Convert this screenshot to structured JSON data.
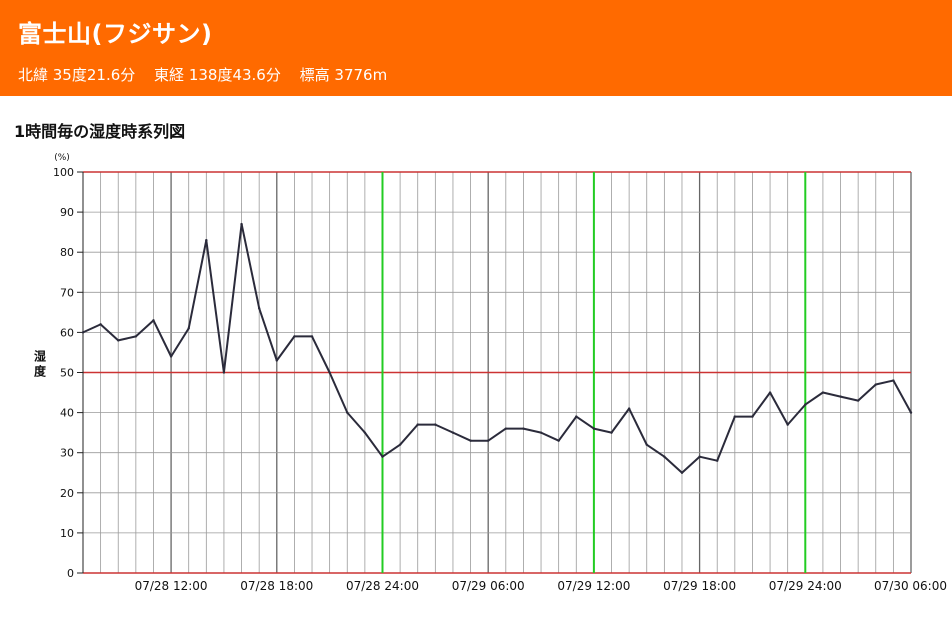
{
  "header": {
    "title": "富士山(フジサン)",
    "latitude": "北緯 35度21.6分",
    "longitude": "東経 138度43.6分",
    "elevation": "標高 3776m"
  },
  "section_title": "1時間毎の湿度時系列図",
  "colors": {
    "header_bg": "#ff6a00",
    "series_line": "#2b2b3b",
    "highlight_hline": "#cc3333",
    "day_boundary": "#22cc22",
    "grid": "#888888"
  },
  "chart_data": {
    "type": "line",
    "ylabel": "湿度",
    "yunit": "(%)",
    "ylim": [
      0,
      100
    ],
    "yticks": [
      0,
      10,
      20,
      30,
      40,
      50,
      60,
      70,
      80,
      90,
      100
    ],
    "highlight_y": [
      0,
      50,
      100
    ],
    "grid": true,
    "x_start": "07/28 07:00",
    "x_end": "07/30 06:00",
    "xtick_labels": [
      "07/28 12:00",
      "07/28 18:00",
      "07/28 24:00",
      "07/29 06:00",
      "07/29 12:00",
      "07/29 18:00",
      "07/29 24:00",
      "07/30 06:00"
    ],
    "day_boundaries": [
      "07/28 24:00",
      "07/29 12:00",
      "07/29 24:00"
    ],
    "series": [
      {
        "values": [
          60,
          62,
          58,
          59,
          63,
          54,
          61,
          83,
          50,
          87,
          66,
          53,
          59,
          59,
          50,
          40,
          35,
          29,
          32,
          37,
          37,
          35,
          33,
          33,
          36,
          36,
          35,
          33,
          39,
          36,
          35,
          41,
          32,
          29,
          25,
          29,
          28,
          39,
          39,
          45,
          37,
          42,
          45,
          44,
          43,
          47,
          48,
          40
        ]
      }
    ]
  }
}
